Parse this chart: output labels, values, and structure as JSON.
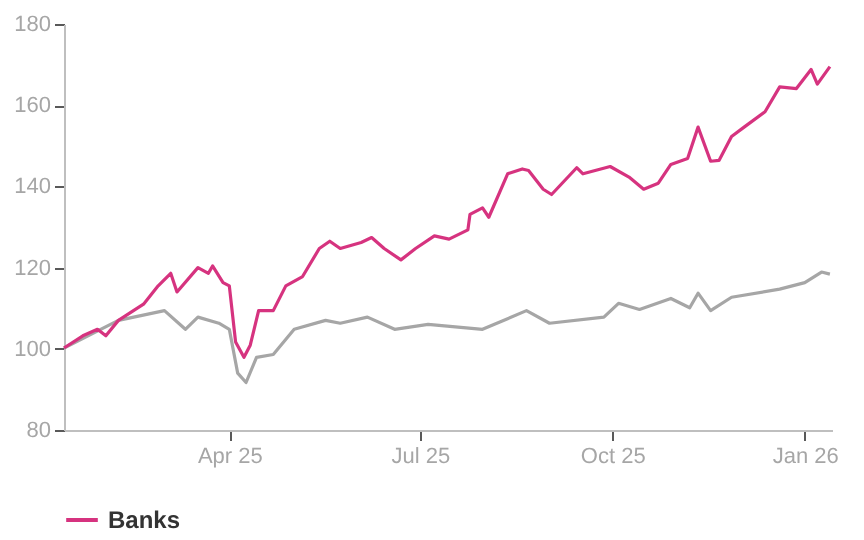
{
  "chart_data": {
    "type": "line",
    "xlim": [
      "2025-01-12",
      "2026-01-14"
    ],
    "xticks": [
      {
        "value": "2025-04-01",
        "label": "Apr 25"
      },
      {
        "value": "2025-07-01",
        "label": "Jul 25"
      },
      {
        "value": "2025-10-01",
        "label": "Oct 25"
      },
      {
        "value": "2026-01-01",
        "label": "Jan 26"
      }
    ],
    "ylim": [
      80,
      180
    ],
    "yticks": [
      80,
      100,
      120,
      140,
      160,
      180
    ],
    "grid": false,
    "legend": "bottom",
    "marker": "none",
    "line_style": "solid",
    "series": [
      {
        "color": "#a6a6a6",
        "x": [
          "2025-01-12",
          "2025-02-07",
          "2025-03-01",
          "2025-03-11",
          "2025-03-17",
          "2025-03-27",
          "2025-04-01",
          "2025-04-05",
          "2025-04-09",
          "2025-04-14",
          "2025-04-22",
          "2025-05-02",
          "2025-05-17",
          "2025-05-24",
          "2025-06-06",
          "2025-06-19",
          "2025-07-05",
          "2025-07-31",
          "2025-08-21",
          "2025-09-01",
          "2025-09-27",
          "2025-10-04",
          "2025-10-14",
          "2025-10-29",
          "2025-11-07",
          "2025-11-11",
          "2025-11-17",
          "2025-11-27",
          "2025-12-20",
          "2026-01-01",
          "2026-01-09",
          "2026-01-13"
        ],
        "values": [
          100.2,
          107,
          109.4,
          104.8,
          107.8,
          106.3,
          104.8,
          94,
          91.7,
          97.9,
          98.6,
          104.8,
          107,
          106.3,
          107.8,
          104.8,
          106,
          104.8,
          109.4,
          106.3,
          107.8,
          111.2,
          109.7,
          112.4,
          110.1,
          113.7,
          109.4,
          112.7,
          114.7,
          116.3,
          118.9,
          118.4
        ]
      },
      {
        "name": "Banks",
        "color": "#d6337f",
        "x": [
          "2025-01-12",
          "2025-01-21",
          "2025-01-28",
          "2025-02-01",
          "2025-02-07",
          "2025-02-19",
          "2025-02-26",
          "2025-03-04",
          "2025-03-07",
          "2025-03-17",
          "2025-03-22",
          "2025-03-24",
          "2025-03-29",
          "2025-04-01",
          "2025-04-04",
          "2025-04-08",
          "2025-04-11",
          "2025-04-15",
          "2025-04-22",
          "2025-04-28",
          "2025-05-06",
          "2025-05-14",
          "2025-05-19",
          "2025-05-24",
          "2025-06-03",
          "2025-06-08",
          "2025-06-14",
          "2025-06-22",
          "2025-06-29",
          "2025-07-08",
          "2025-07-15",
          "2025-07-24",
          "2025-07-25",
          "2025-07-31",
          "2025-08-03",
          "2025-08-12",
          "2025-08-19",
          "2025-08-22",
          "2025-08-29",
          "2025-09-02",
          "2025-09-14",
          "2025-09-17",
          "2025-09-30",
          "2025-10-09",
          "2025-10-16",
          "2025-10-23",
          "2025-10-29",
          "2025-11-06",
          "2025-11-11",
          "2025-11-17",
          "2025-11-21",
          "2025-11-27",
          "2025-12-03",
          "2025-12-13",
          "2025-12-20",
          "2025-12-28",
          "2026-01-04",
          "2026-01-07",
          "2026-01-13"
        ],
        "values": [
          100.2,
          103.2,
          104.8,
          103.2,
          107,
          111,
          115.5,
          118.6,
          114,
          120,
          118.6,
          120.4,
          116.3,
          115.5,
          101.7,
          97.9,
          100.9,
          109.4,
          109.4,
          115.5,
          117.8,
          124.7,
          126.5,
          124.7,
          126.2,
          127.4,
          124.7,
          121.9,
          124.7,
          127.8,
          127,
          129.3,
          133.1,
          134.7,
          132.4,
          143.1,
          144.3,
          143.9,
          139.3,
          138,
          144.6,
          143.1,
          144.9,
          142.3,
          139.3,
          140.8,
          145.4,
          146.9,
          154.6,
          146.2,
          146.4,
          152.3,
          154.6,
          158.4,
          164.5,
          164.1,
          168.8,
          165.2,
          169.5
        ]
      }
    ]
  }
}
